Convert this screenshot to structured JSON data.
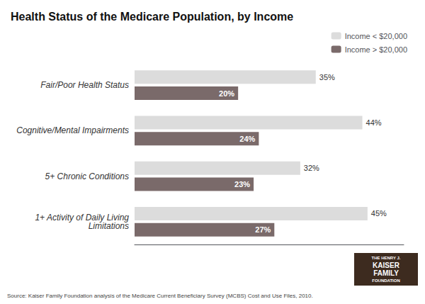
{
  "chart_data": {
    "type": "bar",
    "orientation": "horizontal",
    "title": "Health Status of the Medicare Population, by Income",
    "categories": [
      "Fair/Poor Health Status",
      "Cognitive/Mental Impairments",
      "5+ Chronic Conditions",
      "1+ Activity of Daily Living\nLimitations"
    ],
    "series": [
      {
        "name": "Income < $20,000",
        "color": "#dcdcdc",
        "values": [
          35,
          44,
          32,
          45
        ],
        "value_labels": [
          "35%",
          "44%",
          "32%",
          "45%"
        ]
      },
      {
        "name": "Income > $20,000",
        "color": "#7a6a6a",
        "values": [
          20,
          24,
          23,
          27
        ],
        "value_labels": [
          "20%",
          "24%",
          "23%",
          "27%"
        ]
      }
    ],
    "xlim": [
      0,
      52
    ],
    "grid": false,
    "legend": "upper right",
    "data_labels": true,
    "tick_labels": "y",
    "annotations": [
      "Source: Kaiser Family Foundation analysis of the Medicare Current Beneficiary Survey (MCBS) Cost and Use Files, 2010.",
      "THE HENRY J.",
      "KAISER",
      "FAMILY",
      "FOUNDATION"
    ]
  }
}
